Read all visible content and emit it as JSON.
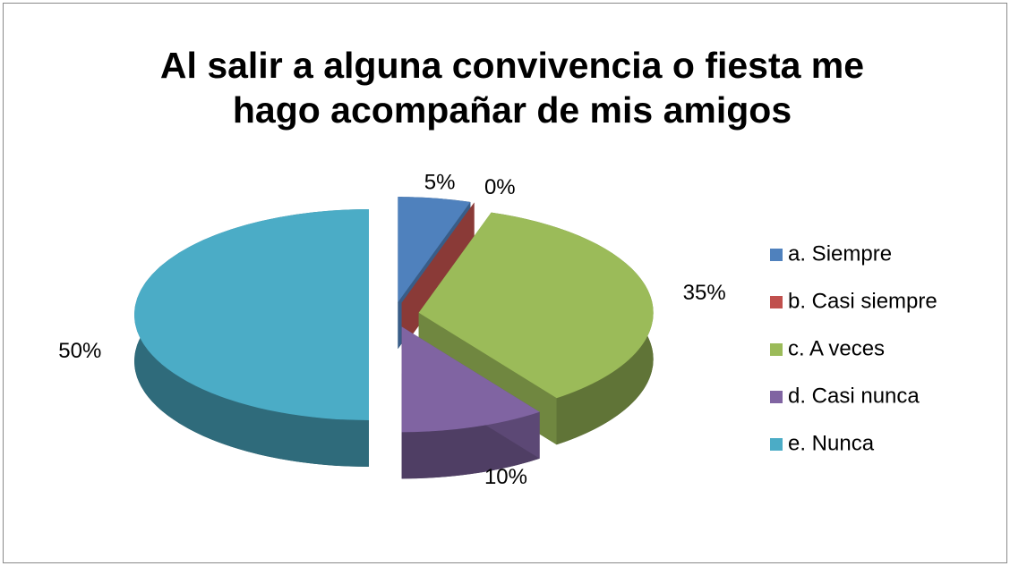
{
  "chart_data": {
    "type": "pie",
    "title": [
      "Al salir a alguna convivencia o fiesta me",
      "hago acompañar de mis amigos"
    ],
    "categories": [
      "a. Siempre",
      "b. Casi siempre",
      "c. A veces",
      "d. Casi nunca",
      "e. Nunca"
    ],
    "values": [
      5,
      0,
      35,
      10,
      50
    ],
    "value_labels": [
      "5%",
      "0%",
      "35%",
      "10%",
      "50%"
    ],
    "colors": [
      "#4f81bd",
      "#c0504d",
      "#9bbb59",
      "#8064a2",
      "#4bacc6"
    ],
    "legend": "right"
  }
}
